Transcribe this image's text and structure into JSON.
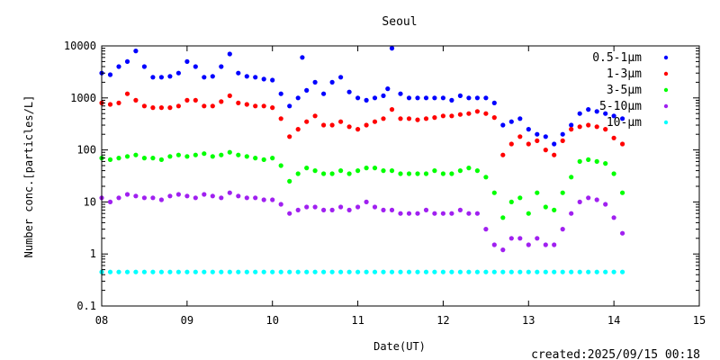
{
  "chart_data": {
    "type": "scatter",
    "title": "Seoul",
    "xlabel": "Date(UT)",
    "ylabel": "Number conc.[particles/L]",
    "xlim": [
      8,
      15
    ],
    "ylim": [
      0.1,
      10000
    ],
    "yscale": "log",
    "xticks": [
      "08",
      "09",
      "10",
      "11",
      "12",
      "13",
      "14",
      "15"
    ],
    "yticks": [
      "0.1",
      "1",
      "10",
      "100",
      "1000",
      "10000"
    ],
    "legend_position": "top-right",
    "grid": false,
    "footer": "created:2025/09/15 00:18",
    "series": [
      {
        "name": "0.5-1μm",
        "color": "#0000ff",
        "x": [
          8.0,
          8.1,
          8.2,
          8.3,
          8.4,
          8.5,
          8.6,
          8.7,
          8.8,
          8.9,
          9.0,
          9.1,
          9.2,
          9.3,
          9.4,
          9.5,
          9.6,
          9.7,
          9.8,
          9.9,
          10.0,
          10.1,
          10.2,
          10.3,
          10.35,
          10.4,
          10.5,
          10.6,
          10.7,
          10.8,
          10.9,
          11.0,
          11.1,
          11.2,
          11.3,
          11.35,
          11.4,
          11.5,
          11.6,
          11.7,
          11.8,
          11.9,
          12.0,
          12.1,
          12.2,
          12.3,
          12.4,
          12.5,
          12.6,
          12.7,
          12.8,
          12.9,
          13.0,
          13.1,
          13.2,
          13.3,
          13.4,
          13.5,
          13.6,
          13.7,
          13.8,
          13.9,
          14.0,
          14.1
        ],
        "y": [
          3000,
          2800,
          4000,
          5000,
          8000,
          4000,
          2500,
          2500,
          2600,
          3000,
          5000,
          4000,
          2500,
          2600,
          4000,
          7000,
          3000,
          2600,
          2500,
          2300,
          2200,
          1200,
          700,
          1000,
          6000,
          1400,
          2000,
          1200,
          2000,
          2500,
          1300,
          1000,
          900,
          1000,
          1100,
          1500,
          9000,
          1200,
          1000,
          1000,
          1000,
          1000,
          1000,
          900,
          1100,
          1000,
          1000,
          1000,
          800,
          300,
          350,
          400,
          250,
          200,
          180,
          130,
          200,
          300,
          500,
          600,
          550,
          500,
          450,
          400
        ]
      },
      {
        "name": "1-3μm",
        "color": "#ff0000",
        "x": [
          8.0,
          8.1,
          8.2,
          8.3,
          8.4,
          8.5,
          8.6,
          8.7,
          8.8,
          8.9,
          9.0,
          9.1,
          9.2,
          9.3,
          9.4,
          9.5,
          9.6,
          9.7,
          9.8,
          9.9,
          10.0,
          10.1,
          10.2,
          10.3,
          10.4,
          10.5,
          10.6,
          10.7,
          10.8,
          10.9,
          11.0,
          11.1,
          11.2,
          11.3,
          11.4,
          11.5,
          11.6,
          11.7,
          11.8,
          11.9,
          12.0,
          12.1,
          12.2,
          12.3,
          12.4,
          12.5,
          12.6,
          12.7,
          12.8,
          12.9,
          13.0,
          13.1,
          13.2,
          13.3,
          13.4,
          13.5,
          13.6,
          13.7,
          13.8,
          13.9,
          14.0,
          14.1
        ],
        "y": [
          800,
          750,
          800,
          1200,
          900,
          700,
          650,
          650,
          650,
          700,
          900,
          900,
          700,
          700,
          850,
          1100,
          800,
          750,
          700,
          700,
          650,
          400,
          180,
          250,
          350,
          450,
          300,
          300,
          350,
          280,
          250,
          300,
          350,
          400,
          600,
          400,
          400,
          380,
          400,
          420,
          450,
          450,
          480,
          500,
          550,
          500,
          420,
          80,
          130,
          180,
          130,
          150,
          100,
          80,
          150,
          250,
          280,
          300,
          280,
          250,
          170,
          130
        ]
      },
      {
        "name": "3-5μm",
        "color": "#00ff00",
        "x": [
          8.0,
          8.1,
          8.2,
          8.3,
          8.4,
          8.5,
          8.6,
          8.7,
          8.8,
          8.9,
          9.0,
          9.1,
          9.2,
          9.3,
          9.4,
          9.5,
          9.6,
          9.7,
          9.8,
          9.9,
          10.0,
          10.1,
          10.2,
          10.3,
          10.4,
          10.5,
          10.6,
          10.7,
          10.8,
          10.9,
          11.0,
          11.1,
          11.2,
          11.3,
          11.4,
          11.5,
          11.6,
          11.7,
          11.8,
          11.9,
          12.0,
          12.1,
          12.2,
          12.3,
          12.4,
          12.5,
          12.6,
          12.7,
          12.8,
          12.9,
          13.0,
          13.1,
          13.2,
          13.3,
          13.4,
          13.5,
          13.6,
          13.7,
          13.8,
          13.9,
          14.0,
          14.1
        ],
        "y": [
          70,
          65,
          70,
          75,
          80,
          70,
          70,
          65,
          75,
          80,
          75,
          80,
          85,
          75,
          80,
          90,
          80,
          75,
          70,
          65,
          70,
          50,
          25,
          35,
          45,
          40,
          35,
          35,
          40,
          35,
          40,
          45,
          45,
          40,
          40,
          35,
          35,
          35,
          35,
          40,
          35,
          35,
          40,
          45,
          40,
          30,
          15,
          5,
          10,
          12,
          6,
          15,
          8,
          7,
          15,
          30,
          60,
          65,
          60,
          55,
          35,
          15
        ]
      },
      {
        "name": "5-10μm",
        "color": "#a020f0",
        "x": [
          8.0,
          8.1,
          8.2,
          8.3,
          8.4,
          8.5,
          8.6,
          8.7,
          8.8,
          8.9,
          9.0,
          9.1,
          9.2,
          9.3,
          9.4,
          9.5,
          9.6,
          9.7,
          9.8,
          9.9,
          10.0,
          10.1,
          10.2,
          10.3,
          10.4,
          10.5,
          10.6,
          10.7,
          10.8,
          10.9,
          11.0,
          11.1,
          11.2,
          11.3,
          11.4,
          11.5,
          11.6,
          11.7,
          11.8,
          11.9,
          12.0,
          12.1,
          12.2,
          12.3,
          12.4,
          12.5,
          12.6,
          12.7,
          12.8,
          12.9,
          13.0,
          13.1,
          13.2,
          13.3,
          13.4,
          13.5,
          13.6,
          13.7,
          13.8,
          13.9,
          14.0,
          14.1
        ],
        "y": [
          12,
          10,
          12,
          14,
          13,
          12,
          12,
          11,
          13,
          14,
          13,
          12,
          14,
          13,
          12,
          15,
          13,
          12,
          12,
          11,
          11,
          9,
          6,
          7,
          8,
          8,
          7,
          7,
          8,
          7,
          8,
          10,
          8,
          7,
          7,
          6,
          6,
          6,
          7,
          6,
          6,
          6,
          7,
          6,
          6,
          3,
          1.5,
          1.2,
          2,
          2,
          1.5,
          2,
          1.5,
          1.5,
          3,
          6,
          10,
          12,
          11,
          9,
          5,
          2.5
        ]
      },
      {
        "name": "10-μm",
        "color": "#00ffff",
        "x": [
          8.0,
          8.1,
          8.2,
          8.3,
          8.4,
          8.5,
          8.6,
          8.7,
          8.8,
          8.9,
          9.0,
          9.1,
          9.2,
          9.3,
          9.4,
          9.5,
          9.6,
          9.7,
          9.8,
          9.9,
          10.0,
          10.1,
          10.2,
          10.3,
          10.4,
          10.5,
          10.6,
          10.7,
          10.8,
          10.9,
          11.0,
          11.1,
          11.2,
          11.3,
          11.4,
          11.5,
          11.6,
          11.7,
          11.8,
          11.9,
          12.0,
          12.1,
          12.2,
          12.3,
          12.4,
          12.5,
          12.6,
          12.7,
          12.8,
          12.9,
          13.0,
          13.1,
          13.2,
          13.3,
          13.4,
          13.5,
          13.6,
          13.7,
          13.8,
          13.9,
          14.0,
          14.1
        ],
        "y": [
          0.45,
          0.45,
          0.45,
          0.45,
          0.45,
          0.45,
          0.45,
          0.45,
          0.45,
          0.45,
          0.45,
          0.45,
          0.45,
          0.45,
          0.45,
          0.45,
          0.45,
          0.45,
          0.45,
          0.45,
          0.45,
          0.45,
          0.45,
          0.45,
          0.45,
          0.45,
          0.45,
          0.45,
          0.45,
          0.45,
          0.45,
          0.45,
          0.45,
          0.45,
          0.45,
          0.45,
          0.45,
          0.45,
          0.45,
          0.45,
          0.45,
          0.45,
          0.45,
          0.45,
          0.45,
          0.45,
          0.45,
          0.45,
          0.45,
          0.45,
          0.45,
          0.45,
          0.45,
          0.45,
          0.45,
          0.45,
          0.45,
          0.45,
          0.45,
          0.45,
          0.45,
          0.45
        ]
      }
    ]
  }
}
